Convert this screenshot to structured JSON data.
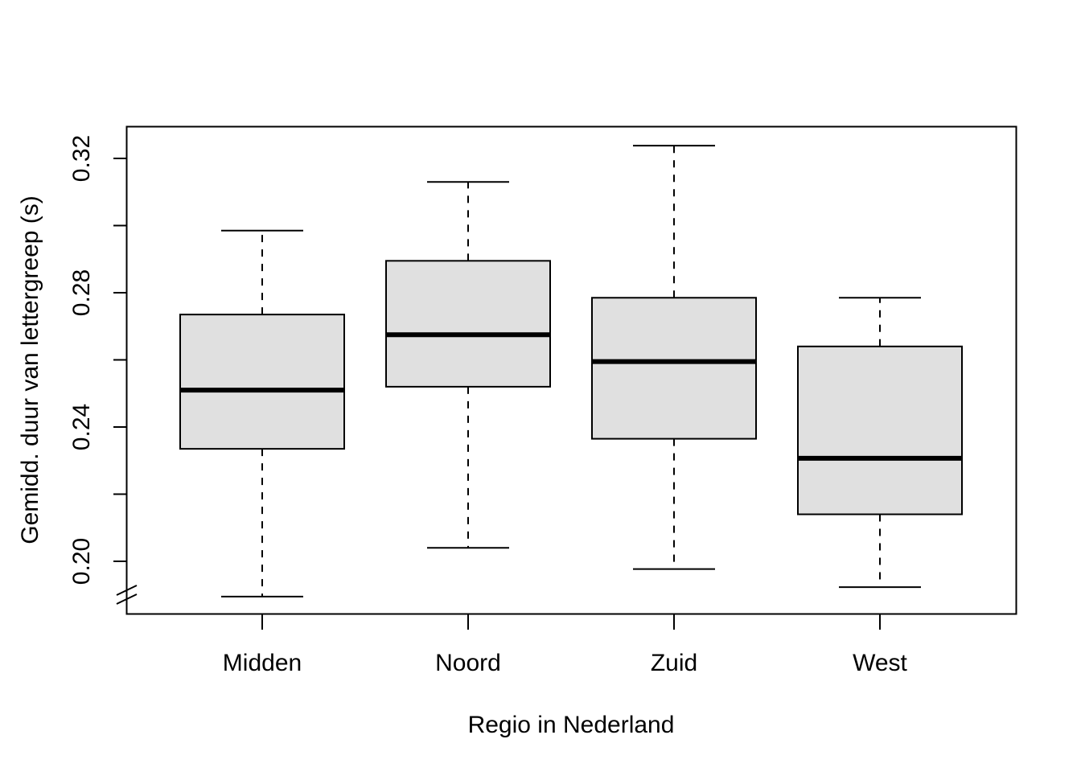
{
  "chart_data": {
    "type": "boxplot",
    "title": "",
    "xlabel": "Regio in Nederland",
    "ylabel": "Gemidd. duur van lettergreep (s)",
    "ylim": [
      0.185,
      0.33
    ],
    "yticks": [
      0.2,
      0.22,
      0.24,
      0.26,
      0.28,
      0.3,
      0.32
    ],
    "ytick_labels": [
      "0.20",
      "",
      "0.24",
      "",
      "0.28",
      "",
      "0.32"
    ],
    "axis_break": true,
    "grid": false,
    "box_fill": "#e0e0e0",
    "categories": [
      "Midden",
      "Noord",
      "Zuid",
      "West"
    ],
    "boxes": [
      {
        "label": "Midden",
        "min": 0.1895,
        "q1": 0.2335,
        "median": 0.251,
        "q3": 0.2735,
        "max": 0.2985
      },
      {
        "label": "Noord",
        "min": 0.204,
        "q1": 0.252,
        "median": 0.2675,
        "q3": 0.2895,
        "max": 0.313
      },
      {
        "label": "Zuid",
        "min": 0.1977,
        "q1": 0.2365,
        "median": 0.2595,
        "q3": 0.2785,
        "max": 0.3238
      },
      {
        "label": "West",
        "min": 0.1923,
        "q1": 0.214,
        "median": 0.2307,
        "q3": 0.264,
        "max": 0.2785
      }
    ]
  }
}
